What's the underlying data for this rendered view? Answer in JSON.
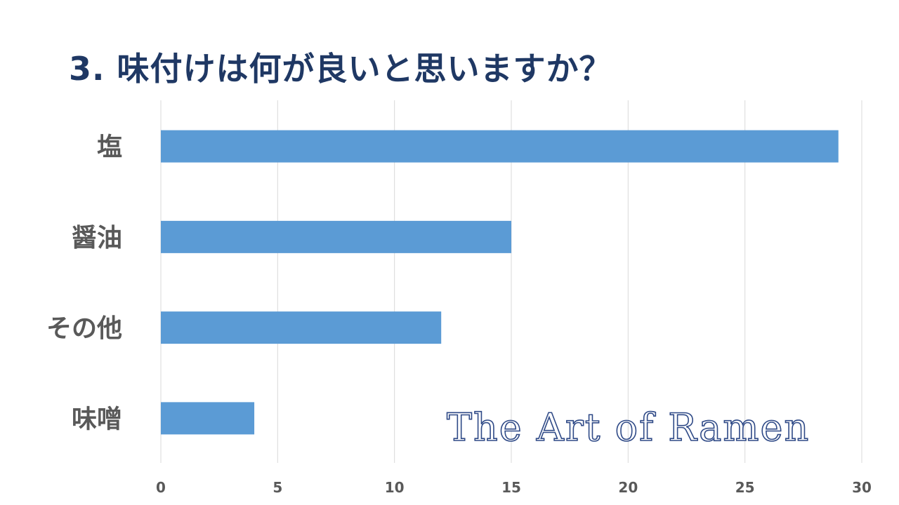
{
  "page": {
    "title": "3. 味付けは何が良いと思いますか？",
    "watermark": "The Art of Ramen"
  },
  "colors": {
    "title": "#1f3864",
    "bar": "#5b9bd5",
    "label": "#595959",
    "gridline": "#d9d9d9",
    "watermark": "#2f4a87"
  },
  "chart_data": {
    "type": "bar",
    "orientation": "horizontal",
    "title": "3. 味付けは何が良いと思いますか？",
    "xlabel": "",
    "ylabel": "",
    "categories": [
      "塩",
      "醤油",
      "その他",
      "味噌"
    ],
    "values": [
      29,
      15,
      12,
      4
    ],
    "xlim": [
      0,
      30
    ],
    "xticks": [
      0,
      5,
      10,
      15,
      20,
      25,
      30
    ],
    "grid": "vertical",
    "legend": "none"
  }
}
